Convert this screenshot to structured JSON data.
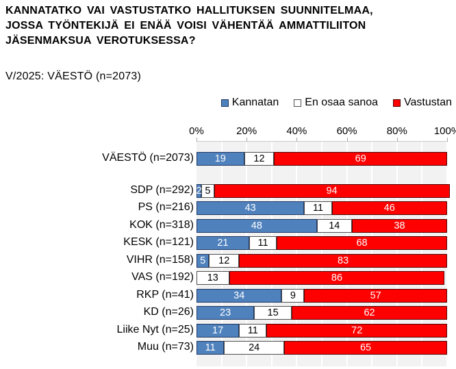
{
  "chart_data": {
    "type": "bar",
    "orientation": "horizontal-stacked",
    "title": "KANNATATKO VAI VASTUSTATKO HALLITUKSEN SUUNNITELMAA,\nJOSSA TYÖNTEKIJÄ EI ENÄÄ VOISI VÄHENTÄÄ AMMATTILIITON\nJÄSENMAKSUA VEROTUKSESSA?",
    "subtitle": "V/2025: VÄESTÖ (n=2073)",
    "legend_position": "top",
    "grid": "vertical-10pct",
    "xlim": [
      0,
      100
    ],
    "x_axis": {
      "ticks": [
        "0%",
        "20%",
        "40%",
        "60%",
        "80%",
        "100%"
      ]
    },
    "series": [
      {
        "name": "Kannatan",
        "color": "#4f81bd",
        "border": "#1f3864",
        "text_color": "#ffffff"
      },
      {
        "name": "En osaa sanoa",
        "color": "#ffffff",
        "border": "#4d4d4d",
        "text_color": "#000000"
      },
      {
        "name": "Vastustan",
        "color": "#fe0000",
        "border": "#550000",
        "text_color": "#ffffff"
      }
    ],
    "rows": [
      {
        "label": "VÄESTÖ (n=2073)",
        "values": [
          19,
          12,
          69
        ],
        "gap_after": true
      },
      {
        "label": "SDP (n=292)",
        "values": [
          2,
          5,
          94
        ]
      },
      {
        "label": "PS (n=216)",
        "values": [
          43,
          11,
          46
        ]
      },
      {
        "label": "KOK (n=318)",
        "values": [
          48,
          14,
          38
        ]
      },
      {
        "label": "KESK (n=121)",
        "values": [
          21,
          11,
          68
        ]
      },
      {
        "label": "VIHR (n=158)",
        "values": [
          5,
          12,
          83
        ]
      },
      {
        "label": "VAS (n=192)",
        "values": [
          0,
          13,
          86
        ]
      },
      {
        "label": "RKP (n=41)",
        "values": [
          34,
          9,
          57
        ]
      },
      {
        "label": "KD (n=26)",
        "values": [
          23,
          15,
          62
        ]
      },
      {
        "label": "Liike Nyt (n=25)",
        "values": [
          17,
          11,
          72
        ]
      },
      {
        "label": "Muu (n=73)",
        "values": [
          11,
          24,
          65
        ]
      }
    ]
  }
}
